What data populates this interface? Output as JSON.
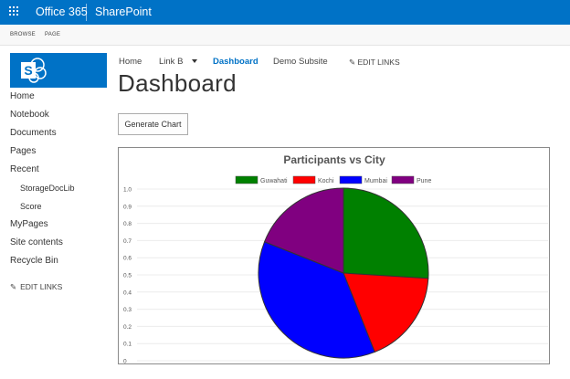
{
  "suite": {
    "brand": "Office 365",
    "app": "SharePoint"
  },
  "ribbon": {
    "tabs": [
      "BROWSE",
      "PAGE"
    ]
  },
  "leftnav": {
    "items": [
      "Home",
      "Notebook",
      "Documents",
      "Pages",
      "Recent"
    ],
    "recent": [
      "StorageDocLib",
      "Score"
    ],
    "items2": [
      "MyPages",
      "Site contents",
      "Recycle Bin"
    ],
    "edit_links": "EDIT LINKS"
  },
  "topnav": {
    "items": [
      "Home",
      "Link B",
      "Dashboard",
      "Demo Subsite"
    ],
    "active": "Dashboard",
    "edit_links": "EDIT LINKS"
  },
  "page": {
    "title": "Dashboard"
  },
  "actions": {
    "generate_chart": "Generate Chart"
  },
  "chart_data": {
    "type": "pie",
    "title": "Participants vs City",
    "categories": [
      "Guwahati",
      "Kochi",
      "Mumbai",
      "Pune"
    ],
    "values": [
      26,
      18,
      37,
      19
    ],
    "colors": [
      "#008000",
      "#ff0000",
      "#0000ff",
      "#800080"
    ],
    "y_ticks": [
      "0",
      "0.1",
      "0.2",
      "0.3",
      "0.4",
      "0.5",
      "0.6",
      "0.7",
      "0.8",
      "0.9",
      "1.0"
    ],
    "ylim": [
      0,
      1
    ],
    "legend_position": "top",
    "grid": true
  }
}
